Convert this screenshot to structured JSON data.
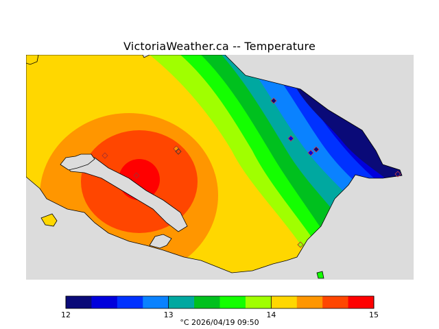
{
  "title": "VictoriaWeather.ca -- Temperature",
  "legend": {
    "colors": [
      "#0a0a78",
      "#0000dc",
      "#0032ff",
      "#0a82ff",
      "#00a8a0",
      "#00c01e",
      "#14ff00",
      "#a0ff00",
      "#ffd700",
      "#ff9600",
      "#ff4600",
      "#ff0000"
    ],
    "ticks": [
      {
        "value": 12,
        "label": "12"
      },
      {
        "value": 13,
        "label": "13"
      },
      {
        "value": 14,
        "label": "14"
      },
      {
        "value": 15,
        "label": "15"
      }
    ],
    "min": 12,
    "max": 15,
    "caption": "°C  2026/04/19 09:50"
  },
  "colors": {
    "land_background": "#ffd700",
    "water": "#dcdcdc",
    "station_marker": "#d04040"
  },
  "stations_count": 10
}
